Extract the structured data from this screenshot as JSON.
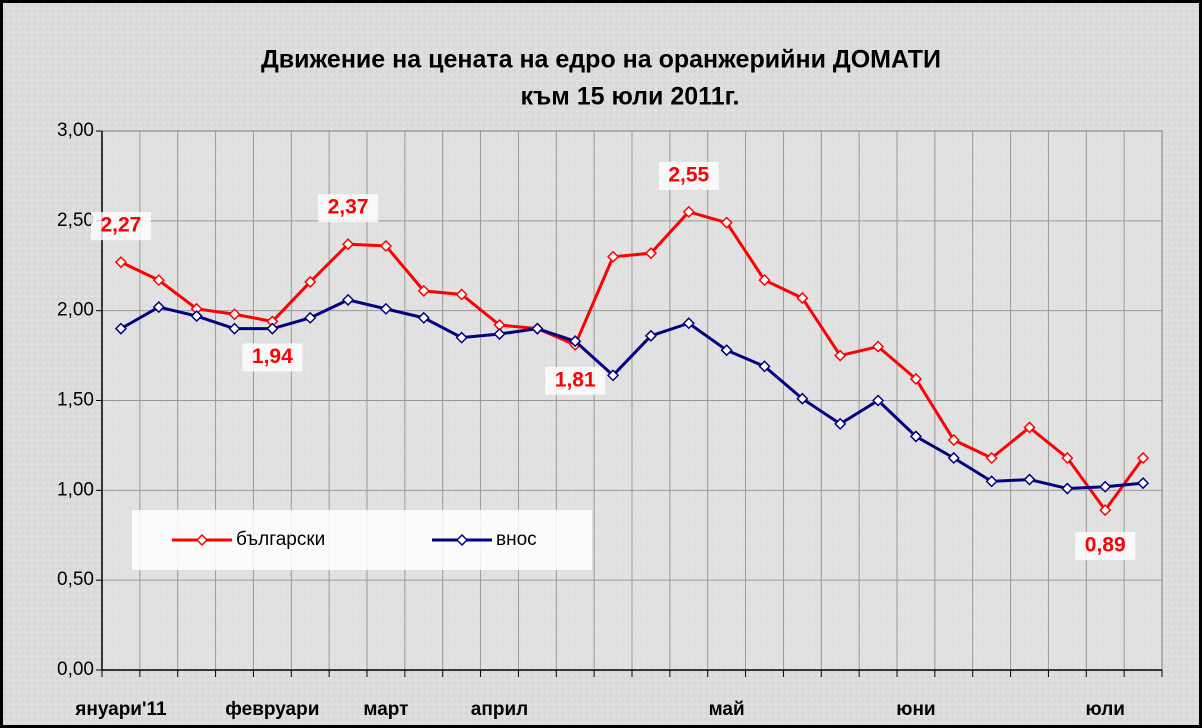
{
  "chart_data": {
    "type": "line",
    "title": "Движение на цената на едро на оранжерийни ДОМАТИ",
    "subtitle": "към 15 юли 2011г.",
    "categories": [
      "януари'11",
      null,
      null,
      null,
      "февруари",
      null,
      null,
      "март",
      null,
      null,
      "април",
      null,
      null,
      null,
      null,
      null,
      "май",
      null,
      null,
      null,
      null,
      "юни",
      null,
      null,
      null,
      null,
      "юли",
      null
    ],
    "series": [
      {
        "name": "български",
        "color": "#ff0000",
        "values": [
          2.27,
          2.17,
          2.01,
          1.98,
          1.94,
          2.16,
          2.37,
          2.36,
          2.11,
          2.09,
          1.92,
          1.9,
          1.81,
          2.3,
          2.32,
          2.55,
          2.49,
          2.17,
          2.07,
          1.75,
          1.8,
          1.62,
          1.28,
          1.18,
          1.35,
          1.18,
          0.89,
          1.18
        ],
        "value_labels": [
          "2,27",
          null,
          null,
          null,
          "1,94",
          null,
          "2,37",
          null,
          null,
          null,
          null,
          null,
          "1,81",
          null,
          null,
          "2,55",
          null,
          null,
          null,
          null,
          null,
          null,
          null,
          null,
          null,
          null,
          "0,89",
          null
        ]
      },
      {
        "name": "внос",
        "color": "#000080",
        "values": [
          1.9,
          2.02,
          1.97,
          1.9,
          1.9,
          1.96,
          2.06,
          2.01,
          1.96,
          1.85,
          1.87,
          1.9,
          1.83,
          1.64,
          1.86,
          1.93,
          1.78,
          1.69,
          1.51,
          1.37,
          1.5,
          1.3,
          1.18,
          1.05,
          1.06,
          1.01,
          1.02,
          1.04
        ]
      }
    ],
    "ylim": [
      0,
      3
    ],
    "yticks": [
      {
        "value": 0,
        "label": "0,00"
      },
      {
        "value": 0.5,
        "label": "0,50"
      },
      {
        "value": 1,
        "label": "1,00"
      },
      {
        "value": 1.5,
        "label": "1,50"
      },
      {
        "value": 2,
        "label": "2,00"
      },
      {
        "value": 2.5,
        "label": "2,50"
      },
      {
        "value": 3,
        "label": "3,00"
      }
    ],
    "grid": true,
    "legend": "lower left"
  }
}
